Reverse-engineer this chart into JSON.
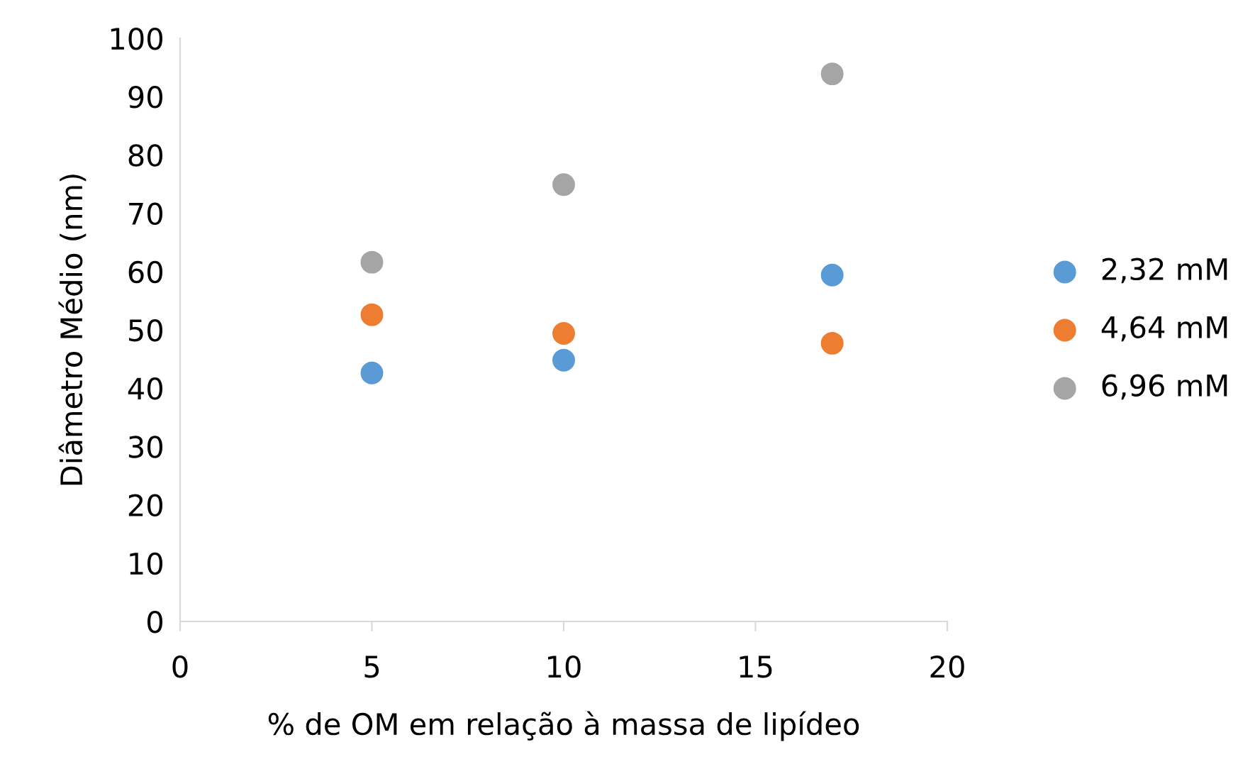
{
  "chart_data": {
    "type": "scatter",
    "xlabel": "% de OM em relação à massa de lipídeo",
    "ylabel": "Diâmetro Médio (nm)",
    "x": [
      5,
      10,
      17
    ],
    "series": [
      {
        "name": "2,32 mM",
        "color": "#5b9bd5",
        "values": [
          42.6,
          44.8,
          59.4
        ]
      },
      {
        "name": "4,64 mM",
        "color": "#ed7d31",
        "values": [
          52.6,
          49.4,
          47.7
        ]
      },
      {
        "name": "6,96 mM",
        "color": "#a5a5a5",
        "values": [
          61.6,
          74.9,
          93.9
        ]
      }
    ],
    "xlim": [
      0,
      20
    ],
    "xticks": [
      0,
      5,
      10,
      15,
      20
    ],
    "ylim": [
      0,
      100
    ],
    "yticks": [
      0,
      10,
      20,
      30,
      40,
      50,
      60,
      70,
      80,
      90,
      100
    ],
    "grid": false,
    "legend": "right",
    "marker": "circle"
  }
}
